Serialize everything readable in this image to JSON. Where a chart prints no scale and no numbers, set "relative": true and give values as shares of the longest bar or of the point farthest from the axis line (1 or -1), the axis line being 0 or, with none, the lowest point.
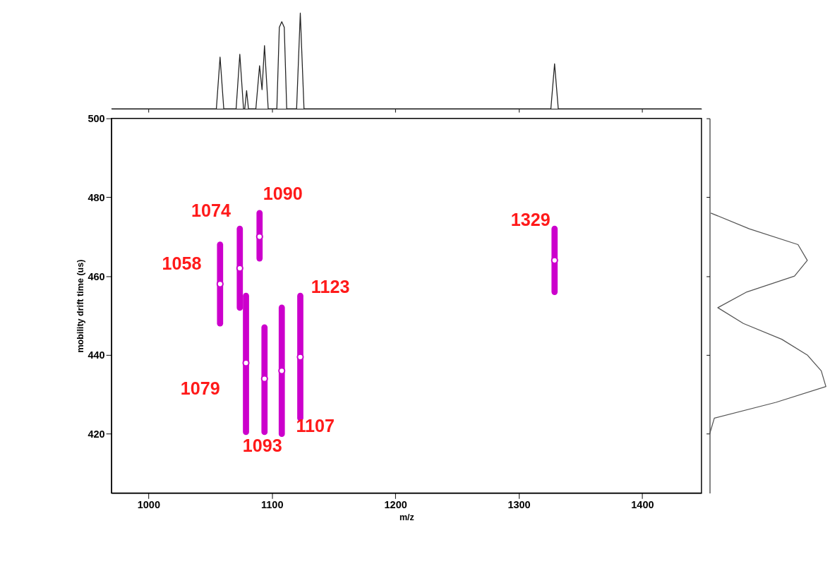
{
  "chart_data": [
    {
      "type": "line",
      "relative": true,
      "xlim": [
        970,
        1448
      ],
      "xticks": [
        1000,
        1100,
        1200,
        1300,
        1400
      ],
      "tick_labels": false,
      "grid": false,
      "legend": false,
      "marker": "none",
      "line_style": "solid",
      "series": [
        {
          "color": "#222222",
          "x": [
            970,
            1055,
            1058,
            1061,
            1071,
            1074,
            1077,
            1078,
            1079.5,
            1081,
            1087,
            1090,
            1092,
            1094,
            1097,
            1104,
            1106,
            1108,
            1110,
            1112,
            1120,
            1123,
            1126,
            1326,
            1329,
            1332,
            1448
          ],
          "values": [
            0,
            0,
            0.54,
            0,
            0,
            0.57,
            0,
            0,
            0.19,
            0,
            0,
            0.45,
            0.2,
            0.66,
            0,
            0,
            0.85,
            0.91,
            0.85,
            0,
            0,
            1,
            0,
            0,
            0.47,
            0,
            0
          ]
        }
      ]
    },
    {
      "type": "scatter",
      "xlim": [
        970,
        1448
      ],
      "ylim": [
        405,
        500
      ],
      "xticks": [
        1000,
        1100,
        1200,
        1300,
        1400
      ],
      "yticks": [
        420,
        440,
        460,
        480,
        500
      ],
      "xlabel": "m/z",
      "ylabel": "mobility drift time (us)",
      "grid": false,
      "legend": false,
      "marker": "circle",
      "series": [
        {
          "color": "#cc00cc",
          "x": [
            1058,
            1074,
            1090,
            1079,
            1094,
            1108,
            1123,
            1329
          ],
          "values": [
            458,
            462,
            470,
            438,
            434,
            436,
            439.5,
            464
          ],
          "errors": [
            [
              448,
              468
            ],
            [
              452,
              472
            ],
            [
              464.5,
              476
            ],
            [
              420.5,
              455
            ],
            [
              420.5,
              447
            ],
            [
              420,
              452
            ],
            [
              424,
              455
            ],
            [
              456,
              472
            ]
          ]
        }
      ],
      "annotations": [
        {
          "text": "1058",
          "x": 1058,
          "y": 458
        },
        {
          "text": "1074",
          "x": 1074,
          "y": 462
        },
        {
          "text": "1090",
          "x": 1090,
          "y": 470
        },
        {
          "text": "1329",
          "x": 1329,
          "y": 464
        },
        {
          "text": "1123",
          "x": 1123,
          "y": 455
        },
        {
          "text": "1079",
          "x": 1079,
          "y": 438
        },
        {
          "text": "1093",
          "x": 1094,
          "y": 420.5
        },
        {
          "text": "1107",
          "x": 1108,
          "y": 420
        }
      ]
    },
    {
      "type": "line",
      "relative": true,
      "orientation": "horizontal",
      "ylim": [
        405,
        500
      ],
      "yticks": [
        420,
        440,
        460,
        480,
        500
      ],
      "tick_labels": false,
      "grid": false,
      "legend": false,
      "marker": "none",
      "line_style": "solid",
      "series": [
        {
          "color": "#555555",
          "x": [
            420,
            424,
            428,
            432,
            436,
            440,
            444,
            448,
            452,
            456,
            460,
            464,
            468,
            472,
            476
          ],
          "values": [
            0,
            0.04,
            0.57,
            1,
            0.96,
            0.84,
            0.62,
            0.29,
            0.07,
            0.32,
            0.73,
            0.84,
            0.76,
            0.34,
            0.01
          ]
        }
      ]
    }
  ]
}
